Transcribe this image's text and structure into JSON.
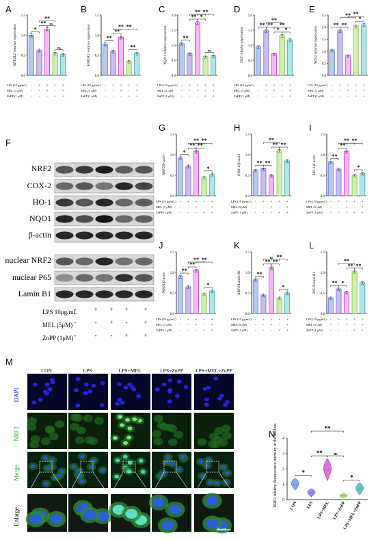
{
  "panel_letters": [
    "A",
    "B",
    "C",
    "D",
    "E",
    "F",
    "G",
    "H",
    "I",
    "J",
    "K",
    "L",
    "M",
    "N"
  ],
  "conditions": {
    "lps_short": "LPS (10 μg/mL)",
    "mel_short": "MEL (5 μM)",
    "znpp_short": "ZnPP (1 μM)",
    "lps_long": "LPS 10μg/mL",
    "mel_long": "MEL  (5μM)",
    "znpp_long": "ZnPP (1μM)"
  },
  "blot": {
    "lanes": [
      {
        "lps": "-",
        "mel": "-",
        "znpp": "-"
      },
      {
        "lps": "+",
        "mel": "-",
        "znpp": "-"
      },
      {
        "lps": "+",
        "mel": "+",
        "znpp": "-"
      },
      {
        "lps": "+",
        "mel": "-",
        "znpp": "+"
      },
      {
        "lps": "+",
        "mel": "+",
        "znpp": "+"
      }
    ],
    "group1": [
      "NRF2",
      "COX-2",
      "HO-1",
      "NQO1",
      "β-actin"
    ],
    "group2": [
      "nuclear NRF2",
      "nuclear P65",
      "Lamin B1"
    ]
  },
  "microscopy": {
    "columns": [
      "CON",
      "LPS",
      "LPS+MEL",
      "LPS+ZnPP",
      "LPS+MEL+ZnPP"
    ],
    "rows": [
      "DAPI",
      "NRF2",
      "Merge",
      "Enlarge"
    ],
    "scale_bar": "10 μm",
    "row_colors": [
      "#1a1adf",
      "#2da02d",
      "#2da02d",
      "#000000"
    ]
  },
  "chart_data": [
    {
      "id": "A",
      "type": "bar",
      "ylabel": "NFE2L2 relative expression",
      "ylim": [
        0,
        1.5
      ],
      "yticks": [
        "0.0",
        "0.5",
        "1.0",
        "1.5"
      ],
      "values": [
        1.0,
        0.62,
        1.15,
        0.55,
        0.52
      ],
      "errors": [
        0.04,
        0.03,
        0.04,
        0.02,
        0.02
      ],
      "brackets": [
        [
          0,
          1,
          "*"
        ],
        [
          1,
          2,
          "**"
        ],
        [
          2,
          3,
          "ns"
        ],
        [
          1,
          3,
          "**"
        ],
        [
          3,
          4,
          "ns"
        ]
      ],
      "extra_marks": [
        "a"
      ]
    },
    {
      "id": "B",
      "type": "bar",
      "ylabel": "HMOX1 relative expression",
      "ylim": [
        0,
        1.5
      ],
      "yticks": [
        "0.0",
        "0.5",
        "1.0",
        "1.5"
      ],
      "values": [
        0.78,
        0.6,
        0.95,
        0.35,
        0.55
      ],
      "errors": [
        0.03,
        0.02,
        0.02,
        0.02,
        0.02
      ],
      "brackets": [
        [
          0,
          1,
          "**"
        ],
        [
          1,
          2,
          "**"
        ],
        [
          1,
          3,
          "**"
        ],
        [
          2,
          4,
          "**"
        ],
        [
          3,
          4,
          "**"
        ]
      ]
    },
    {
      "id": "C",
      "type": "bar",
      "ylabel": "NQO1 relative expression",
      "ylim": [
        0,
        2.0
      ],
      "yticks": [
        "0.0",
        "0.5",
        "1.0",
        "1.5",
        "2.0"
      ],
      "values": [
        1.05,
        0.72,
        1.75,
        0.62,
        0.65
      ],
      "errors": [
        0.03,
        0.03,
        0.03,
        0.02,
        0.02
      ],
      "brackets": [
        [
          0,
          1,
          "**"
        ],
        [
          1,
          2,
          "**"
        ],
        [
          1,
          3,
          "**"
        ],
        [
          2,
          3,
          "*"
        ],
        [
          3,
          4,
          "ns"
        ],
        [
          2,
          4,
          "**"
        ]
      ]
    },
    {
      "id": "D",
      "type": "bar",
      "ylabel": "TNF relative expression",
      "ylim": [
        0,
        2.0
      ],
      "yticks": [
        "0.0",
        "0.5",
        "1.0",
        "1.5",
        "2.0"
      ],
      "values": [
        0.95,
        1.48,
        0.72,
        1.32,
        1.18
      ],
      "errors": [
        0.03,
        0.03,
        0.02,
        0.03,
        0.03
      ],
      "brackets": [
        [
          0,
          1,
          "**"
        ],
        [
          1,
          2,
          "**"
        ],
        [
          1,
          3,
          "**"
        ],
        [
          2,
          3,
          "*"
        ],
        [
          3,
          4,
          "*"
        ],
        [
          2,
          4,
          "**"
        ]
      ]
    },
    {
      "id": "E",
      "type": "bar",
      "ylabel": "NOS2 relative expression",
      "ylim": [
        0,
        2.5
      ],
      "yticks": [
        "0.0",
        "0.5",
        "1.0",
        "1.5",
        "2.0",
        "2.5"
      ],
      "values": [
        1.05,
        1.85,
        0.82,
        2.05,
        2.1
      ],
      "errors": [
        0.03,
        0.04,
        0.03,
        0.04,
        0.04
      ],
      "brackets": [
        [
          0,
          1,
          "**"
        ],
        [
          1,
          2,
          "**"
        ],
        [
          1,
          3,
          "**"
        ],
        [
          2,
          4,
          "**"
        ],
        [
          3,
          4,
          "*"
        ]
      ]
    },
    {
      "id": "G",
      "type": "bar",
      "ylabel": "NRF2/β-actin",
      "ylim": [
        0,
        1.5
      ],
      "yticks": [
        "0.0",
        "0.5",
        "1.0",
        "1.5"
      ],
      "values": [
        0.92,
        0.72,
        1.08,
        0.45,
        0.52
      ],
      "errors": [
        0.03,
        0.03,
        0.03,
        0.03,
        0.03
      ],
      "brackets": [
        [
          0,
          1,
          "*"
        ],
        [
          1,
          2,
          "**"
        ],
        [
          1,
          3,
          "**"
        ],
        [
          2,
          3,
          "**"
        ],
        [
          2,
          4,
          "**"
        ],
        [
          3,
          4,
          "*"
        ]
      ]
    },
    {
      "id": "H",
      "type": "bar",
      "ylabel": "COX-2/β-actin",
      "ylim": [
        0,
        1.5
      ],
      "yticks": [
        "0.0",
        "0.5",
        "1.0",
        "1.5"
      ],
      "values": [
        0.62,
        0.66,
        0.5,
        1.1,
        0.85
      ],
      "errors": [
        0.02,
        0.02,
        0.02,
        0.03,
        0.03
      ],
      "brackets": [
        [
          0,
          1,
          "**"
        ],
        [
          1,
          2,
          "**"
        ],
        [
          1,
          3,
          "**"
        ],
        [
          2,
          3,
          "**"
        ],
        [
          3,
          4,
          "**"
        ]
      ]
    },
    {
      "id": "I",
      "type": "bar",
      "ylabel": "HO-1/β-actin",
      "ylim": [
        0,
        1.5
      ],
      "yticks": [
        "0.0",
        "0.5",
        "1.0",
        "1.5"
      ],
      "values": [
        0.82,
        0.65,
        1.08,
        0.5,
        0.55
      ],
      "errors": [
        0.02,
        0.02,
        0.02,
        0.02,
        0.02
      ],
      "brackets": [
        [
          0,
          1,
          "**"
        ],
        [
          1,
          2,
          "**"
        ],
        [
          1,
          3,
          "**"
        ],
        [
          2,
          4,
          "**"
        ],
        [
          3,
          4,
          "*"
        ]
      ]
    },
    {
      "id": "J",
      "type": "bar",
      "ylabel": "NQO1/β-actin",
      "ylim": [
        0,
        1.5
      ],
      "yticks": [
        "0.0",
        "0.5",
        "1.0",
        "1.5"
      ],
      "values": [
        0.9,
        0.65,
        1.05,
        0.48,
        0.55
      ],
      "errors": [
        0.02,
        0.02,
        0.02,
        0.02,
        0.02
      ],
      "brackets": [
        [
          0,
          1,
          "**"
        ],
        [
          1,
          2,
          "**"
        ],
        [
          1,
          3,
          "**"
        ],
        [
          2,
          4,
          "**"
        ],
        [
          3,
          4,
          "*"
        ]
      ]
    },
    {
      "id": "K",
      "type": "bar",
      "ylabel": "NRF2/Lamin B1",
      "ylim": [
        0,
        1.5
      ],
      "yticks": [
        "0.0",
        "0.5",
        "1.0",
        "1.5"
      ],
      "values": [
        0.82,
        0.45,
        1.12,
        0.38,
        0.5
      ],
      "errors": [
        0.03,
        0.02,
        0.03,
        0.02,
        0.02
      ],
      "brackets": [
        [
          0,
          1,
          "**"
        ],
        [
          1,
          2,
          "**"
        ],
        [
          1,
          3,
          "ns"
        ],
        [
          2,
          3,
          "**"
        ],
        [
          2,
          4,
          "**"
        ],
        [
          3,
          4,
          "*"
        ]
      ]
    },
    {
      "id": "L",
      "type": "bar",
      "ylabel": "P65/Lamin B1",
      "ylim": [
        0,
        1.5
      ],
      "yticks": [
        "0.0",
        "0.5",
        "1.0",
        "1.5"
      ],
      "values": [
        0.38,
        0.6,
        0.52,
        1.02,
        0.75
      ],
      "errors": [
        0.02,
        0.02,
        0.02,
        0.03,
        0.02
      ],
      "brackets": [
        [
          0,
          1,
          "**"
        ],
        [
          1,
          2,
          "*"
        ],
        [
          1,
          3,
          "**"
        ],
        [
          2,
          3,
          "**"
        ],
        [
          3,
          4,
          "**"
        ]
      ]
    },
    {
      "id": "N",
      "type": "violin",
      "ylabel": "NRF2 relative fluorescence intensity in the nucleus",
      "ylim": [
        0,
        4
      ],
      "yticks": [
        "0",
        "1",
        "2",
        "3",
        "4"
      ],
      "categories": [
        "CON",
        "LPS",
        "LPS+MEL",
        "LPS+ZnPP",
        "LPS+MEL+ZnPP"
      ],
      "values": [
        1.0,
        0.45,
        1.95,
        0.25,
        0.7
      ],
      "spread": [
        0.3,
        0.2,
        0.55,
        0.12,
        0.3
      ],
      "brackets": [
        [
          0,
          1,
          "*"
        ],
        [
          1,
          2,
          "**"
        ],
        [
          2,
          3,
          "ns"
        ],
        [
          3,
          4,
          "*"
        ],
        [
          1,
          3,
          "**"
        ]
      ]
    }
  ],
  "colors": {
    "bar_fills": [
      "#b9c8f0",
      "#c8bff0",
      "#f5b9f5",
      "#d0f0b0",
      "#b0e6e6"
    ],
    "bar_edges": [
      "#4a6fd0",
      "#6a4fc8",
      "#c82ac8",
      "#6ab040",
      "#2a9a9a"
    ],
    "violin_fills": [
      "#5a8ff0",
      "#7a5ff0",
      "#c84ac8",
      "#8ad040",
      "#2ab0b0"
    ]
  }
}
